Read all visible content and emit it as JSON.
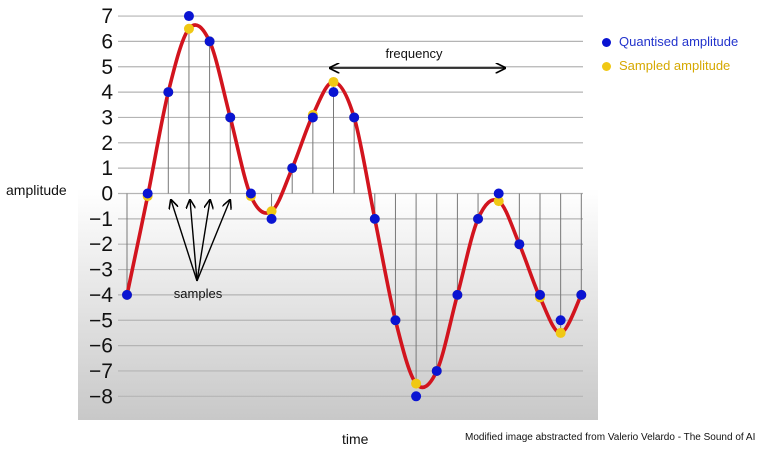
{
  "labels": {
    "y_axis": "amplitude",
    "x_axis": "time",
    "frequency": "frequency",
    "samples": "samples",
    "credit": "Modified image abstracted from Valerio Velardo - The Sound of AI"
  },
  "legend": {
    "quantised": "Quantised amplitude",
    "sampled": "Sampled amplitude"
  },
  "colors": {
    "wave": "#d2141e",
    "quantised": "#0a14d2",
    "sampled": "#f0c814",
    "legend_quantised_text": "#2233cc",
    "legend_sampled_text": "#d6a800",
    "grid": "#b4b4b4",
    "stem": "#787878"
  },
  "chart_data": {
    "type": "scatter",
    "y_ticks": [
      "7",
      "6",
      "5",
      "4",
      "3",
      "2",
      "1",
      "0",
      "−1",
      "−2",
      "−3",
      "−4",
      "−5",
      "−6",
      "−7",
      "−8"
    ],
    "ylim": [
      -8,
      7
    ],
    "sample_index": [
      0,
      1,
      2,
      3,
      4,
      5,
      6,
      7,
      8,
      9,
      10,
      11,
      12,
      13,
      14,
      15,
      16,
      17,
      18,
      19,
      20,
      21,
      22
    ],
    "sampled_amplitude": [
      -4,
      -0.1,
      4.0,
      6.5,
      6.0,
      3.0,
      -0.1,
      -0.7,
      1.0,
      3.1,
      4.4,
      3.0,
      -1.0,
      -5.0,
      -7.5,
      -7.0,
      -4.0,
      -1.0,
      -0.3,
      -2.0,
      -4.1,
      -5.5,
      -4.0
    ],
    "quantised_amplitude": [
      -4,
      0,
      4,
      7,
      6,
      3,
      0,
      -1,
      1,
      3,
      4,
      3,
      -1,
      -5,
      -8,
      -7,
      -4,
      -1,
      0,
      -2,
      -4,
      -5,
      -4
    ]
  }
}
